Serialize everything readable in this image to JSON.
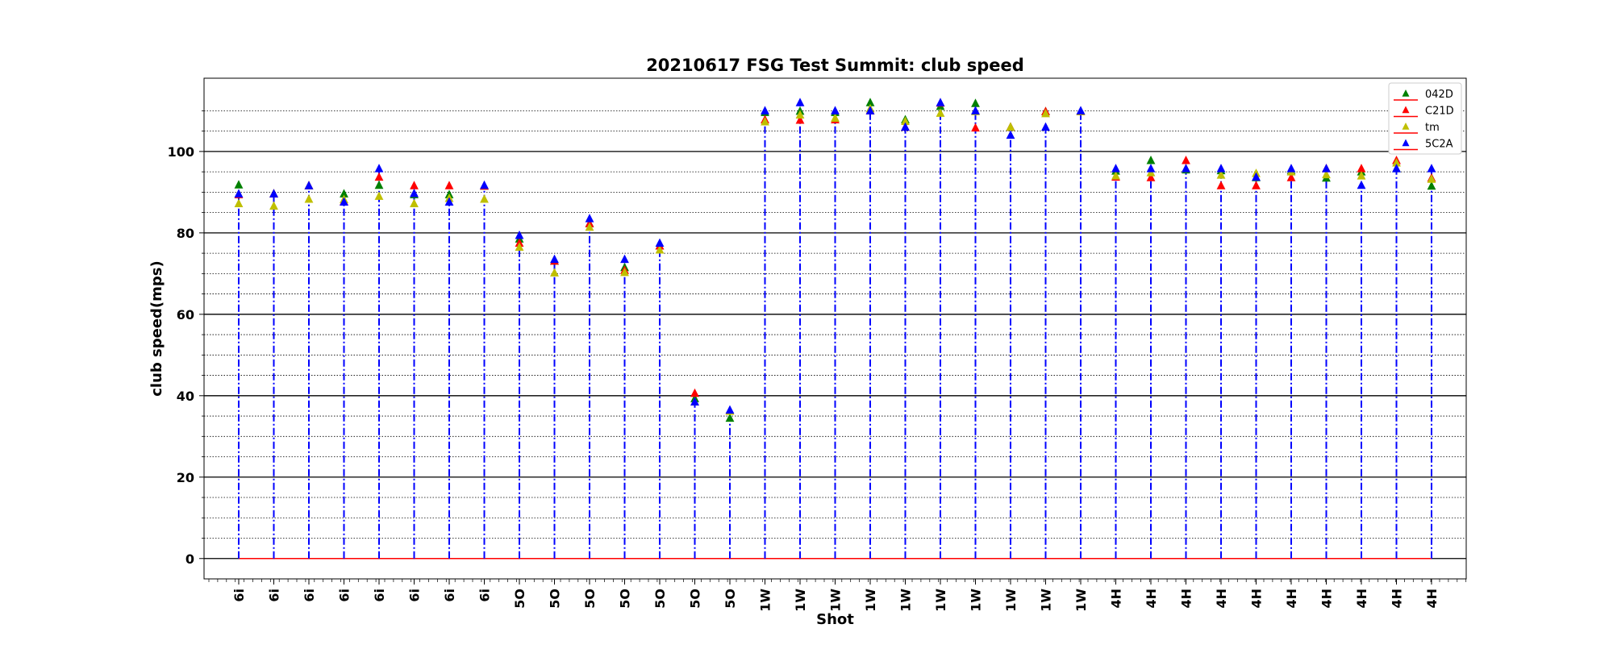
{
  "chart_data": {
    "type": "scatter",
    "title": "20210617 FSG Test Summit: club speed",
    "xlabel": "Shot",
    "ylabel": "club speed(mps)",
    "ylim": [
      -5,
      118
    ],
    "y_major_ticks": [
      0,
      20,
      40,
      60,
      80,
      100
    ],
    "y_minor_ticks": [
      5,
      10,
      15,
      25,
      30,
      35,
      45,
      50,
      55,
      65,
      70,
      75,
      85,
      90,
      95,
      105,
      110
    ],
    "grid": true,
    "legend_position": "top-right",
    "categories": [
      "6i",
      "6i",
      "6i",
      "6i",
      "6i",
      "6i",
      "6i",
      "6i",
      "5O",
      "5O",
      "5O",
      "5O",
      "5O",
      "5O",
      "5O",
      "1W",
      "1W",
      "1W",
      "1W",
      "1W",
      "1W",
      "1W",
      "1W",
      "1W",
      "1W",
      "4H",
      "4H",
      "4H",
      "4H",
      "4H",
      "4H",
      "4H",
      "4H",
      "4H",
      "4H"
    ],
    "series": [
      {
        "name": "042D",
        "color": "#008000",
        "marker": "triangle-up",
        "values": [
          91.8,
          89.6,
          91.6,
          89.6,
          91.7,
          89.4,
          89.4,
          91.5,
          78.5,
          73.1,
          82.3,
          71.5,
          76.8,
          39.3,
          34.5,
          109.6,
          109.9,
          109.6,
          112.0,
          107.8,
          111.1,
          111.8,
          106.0,
          109.8,
          109.8,
          95.2,
          97.8,
          95.5,
          95.3,
          93.6,
          95.3,
          93.5,
          95.0,
          95.8,
          91.5
        ]
      },
      {
        "name": "C21D",
        "color": "#ff0000",
        "marker": "triangle-up",
        "values": [
          89.4,
          89.6,
          91.6,
          87.7,
          93.7,
          91.6,
          91.6,
          91.5,
          77.5,
          73.1,
          82.3,
          70.8,
          76.8,
          40.6,
          36.2,
          107.8,
          107.7,
          107.8,
          110.0,
          106.0,
          111.9,
          105.8,
          106.0,
          109.8,
          109.8,
          93.7,
          93.6,
          97.8,
          91.6,
          91.6,
          93.6,
          95.8,
          95.8,
          97.8,
          93.5
        ]
      },
      {
        "name": "tm",
        "color": "#bfbf00",
        "marker": "triangle-up",
        "values": [
          87.2,
          86.6,
          88.3,
          88.2,
          89.0,
          87.2,
          88.5,
          88.3,
          76.5,
          70.2,
          81.4,
          70.3,
          75.8,
          38.5,
          36.2,
          107.3,
          109.0,
          108.2,
          110.5,
          107.4,
          109.4,
          109.8,
          106.0,
          109.3,
          109.8,
          94.0,
          94.8,
          95.8,
          94.2,
          94.6,
          95.0,
          94.3,
          94.0,
          97.2,
          93.2
        ]
      },
      {
        "name": "5C2A",
        "color": "#0000ff",
        "marker": "triangle-up",
        "values": [
          89.6,
          89.6,
          91.6,
          87.6,
          95.8,
          89.7,
          87.6,
          91.7,
          79.4,
          73.5,
          83.5,
          73.5,
          77.5,
          38.5,
          36.5,
          110.0,
          112.0,
          110.0,
          110.0,
          106.0,
          112.0,
          110.0,
          104.0,
          106.0,
          110.0,
          95.8,
          95.8,
          95.8,
          95.8,
          93.7,
          95.8,
          95.8,
          91.7,
          95.8,
          95.8
        ]
      }
    ]
  }
}
